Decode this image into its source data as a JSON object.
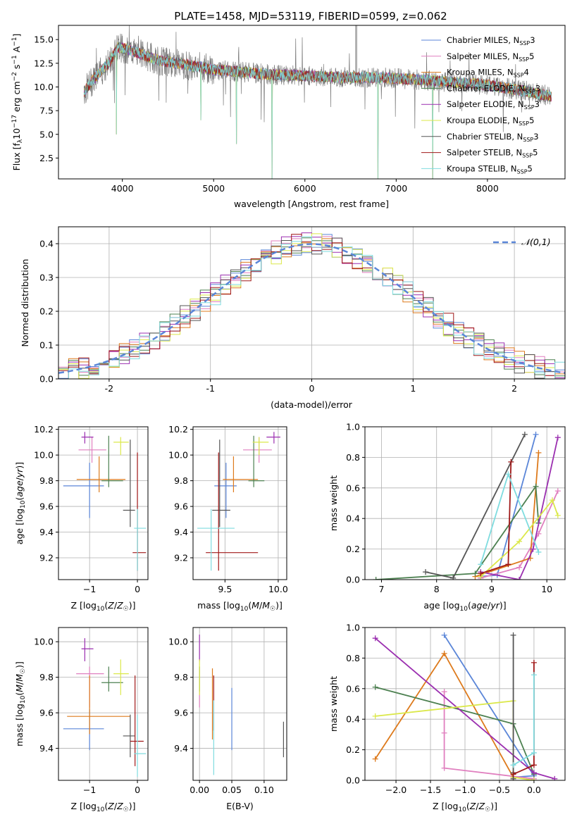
{
  "figure": {
    "title": "PLATE=1458, MJD=53119, FIBERID=0599, z=0.062"
  },
  "colors": {
    "Chabrier MILES": "#5b86d8",
    "Salpeter MILES": "#e07fbf",
    "Kroupa MILES": "#dd7a1c",
    "Chabrier ELODIE": "#4c8050",
    "Salpeter ELODIE": "#9b2fb0",
    "Kroupa ELODIE": "#dbe84a",
    "Chabrier STELIB": "#555555",
    "Salpeter STELIB": "#a01818",
    "Kroupa STELIB": "#7fdcdf",
    "data": "#7a7a7a"
  },
  "chart_data": [
    {
      "id": "spectrum",
      "type": "line",
      "title": "PLATE=1458, MJD=53119, FIBERID=0599, z=0.062",
      "xlabel": "wavelength [Angstrom, rest frame]",
      "ylabel": "Flux [f_λ10^-17 erg cm^-2 s^-1 A^-1]",
      "xlim": [
        3300,
        8850
      ],
      "ylim": [
        0.3,
        16.5
      ],
      "xticks": [
        4000,
        5000,
        6000,
        7000,
        8000
      ],
      "yticks": [
        2.5,
        5.0,
        7.5,
        10.0,
        12.5,
        15.0
      ],
      "ytick_labels": [
        "2.5",
        "5.0",
        "7.5",
        "10.0",
        "12.5",
        "15.0"
      ],
      "grid": false,
      "legend_position": "top-right",
      "legend": [
        {
          "name": "Chabrier MILES",
          "nssp": "3"
        },
        {
          "name": "Salpeter MILES",
          "nssp": "5"
        },
        {
          "name": "Kroupa MILES",
          "nssp": "4"
        },
        {
          "name": "Chabrier ELODIE",
          "nssp": "3"
        },
        {
          "name": "Salpeter ELODIE",
          "nssp": "3"
        },
        {
          "name": "Kroupa ELODIE",
          "nssp": "5"
        },
        {
          "name": "Chabrier STELIB",
          "nssp": "3"
        },
        {
          "name": "Salpeter STELIB",
          "nssp": "5"
        },
        {
          "name": "Kroupa STELIB",
          "nssp": "5"
        }
      ],
      "continuum": {
        "x": [
          3580,
          3700,
          3850,
          3950,
          4050,
          4200,
          4400,
          4600,
          4800,
          5000,
          5300,
          5600,
          6000,
          6400,
          6800,
          7200,
          7600,
          8000,
          8400,
          8700
        ],
        "y": [
          9.5,
          11.0,
          12.5,
          14.2,
          14.0,
          13.5,
          12.8,
          12.5,
          12.2,
          11.8,
          11.6,
          11.3,
          11.2,
          11.0,
          11.0,
          10.8,
          10.5,
          10.2,
          9.6,
          9.0
        ]
      },
      "absorption_features": [
        {
          "x": 3934,
          "y": 5.0
        },
        {
          "x": 4861,
          "y": 6.5
        },
        {
          "x": 5250,
          "y": 4.0
        },
        {
          "x": 5640,
          "y": 0.3
        },
        {
          "x": 6800,
          "y": 0.3
        },
        {
          "x": 7400,
          "y": 0.3
        }
      ]
    },
    {
      "id": "residuals",
      "type": "histogram",
      "xlabel": "(data-model)/error",
      "ylabel": "Normed distribution",
      "xlim": [
        -2.5,
        2.5
      ],
      "ylim": [
        0,
        0.45
      ],
      "xticks": [
        -2,
        -1,
        0,
        1,
        2
      ],
      "yticks": [
        0.0,
        0.1,
        0.2,
        0.3,
        0.4
      ],
      "ytick_labels": [
        "0.0",
        "0.1",
        "0.2",
        "0.3",
        "0.4"
      ],
      "grid": true,
      "legend": [
        {
          "name": "𝒩(0,1)"
        }
      ],
      "bin_width": 0.1,
      "bins_start": -2.5,
      "bins_count": 50
    },
    {
      "id": "z-age",
      "type": "scatter",
      "xlabel": "Z [log10(Z/Z☉)]",
      "ylabel": "age  [log10(age/yr)]",
      "xlim": [
        -1.65,
        0.22
      ],
      "ylim": [
        9.03,
        10.22
      ],
      "xticks": [
        -1,
        0
      ],
      "xtick_labels": [
        "−1",
        "0"
      ],
      "yticks": [
        9.2,
        9.4,
        9.6,
        9.8,
        10.0,
        10.2
      ],
      "ytick_labels": [
        "9.2",
        "9.4",
        "9.6",
        "9.8",
        "10.0",
        "10.2"
      ],
      "grid": true,
      "errorbars": [
        {
          "model": "Chabrier MILES",
          "x": -1.0,
          "y": 9.76,
          "xerr": [
            0.55,
            0.3
          ],
          "yerr": [
            0.25,
            0.18
          ]
        },
        {
          "model": "Salpeter MILES",
          "x": -0.95,
          "y": 10.04,
          "xerr": [
            0.28,
            0.3
          ],
          "yerr": [
            0.1,
            0.1
          ]
        },
        {
          "model": "Kroupa MILES",
          "x": -0.8,
          "y": 9.81,
          "xerr": [
            0.47,
            0.55
          ],
          "yerr": [
            0.1,
            0.18
          ]
        },
        {
          "model": "Chabrier ELODIE",
          "x": -0.6,
          "y": 9.8,
          "xerr": [
            0.15,
            0.3
          ],
          "yerr": [
            0.05,
            0.35
          ]
        },
        {
          "model": "Salpeter ELODIE",
          "x": -1.1,
          "y": 10.14,
          "xerr": [
            0.07,
            0.18
          ],
          "yerr": [
            0.05,
            0.04
          ]
        },
        {
          "model": "Kroupa ELODIE",
          "x": -0.35,
          "y": 10.1,
          "xerr": [
            0.15,
            0.17
          ],
          "yerr": [
            0.1,
            0.04
          ]
        },
        {
          "model": "Chabrier STELIB",
          "x": -0.15,
          "y": 9.57,
          "xerr": [
            0.15,
            0.1
          ],
          "yerr": [
            0.13,
            0.55
          ]
        },
        {
          "model": "Salpeter STELIB",
          "x": 0.0,
          "y": 9.24,
          "xerr": [
            0.1,
            0.18
          ],
          "yerr": [
            0.14,
            0.78
          ]
        },
        {
          "model": "Kroupa STELIB",
          "x": 0.0,
          "y": 9.43,
          "xerr": [
            0.07,
            0.18
          ],
          "yerr": [
            0.33,
            0.15
          ]
        }
      ]
    },
    {
      "id": "mass-age",
      "type": "scatter",
      "xlabel": "mass [log10(M/M☉)]",
      "ylabel": "",
      "xlim": [
        9.2,
        10.08
      ],
      "ylim": [
        9.03,
        10.22
      ],
      "xticks": [
        9.5,
        10.0
      ],
      "xtick_labels": [
        "9.5",
        "10.0"
      ],
      "yticks": [
        9.2,
        9.4,
        9.6,
        9.8,
        10.0,
        10.2
      ],
      "ytick_labels": [
        "9.2",
        "9.4",
        "9.6",
        "9.8",
        "10.0",
        "10.2"
      ],
      "grid": true,
      "errorbars": [
        {
          "model": "Chabrier MILES",
          "x": 9.51,
          "y": 9.76,
          "xerr": [
            0.11,
            0.1
          ],
          "yerr": [
            0.25,
            0.18
          ]
        },
        {
          "model": "Salpeter MILES",
          "x": 9.82,
          "y": 10.04,
          "xerr": [
            0.15,
            0.12
          ],
          "yerr": [
            0.1,
            0.1
          ]
        },
        {
          "model": "Kroupa MILES",
          "x": 9.58,
          "y": 9.81,
          "xerr": [
            0.1,
            0.23
          ],
          "yerr": [
            0.1,
            0.18
          ]
        },
        {
          "model": "Chabrier ELODIE",
          "x": 9.77,
          "y": 9.8,
          "xerr": [
            0.05,
            0.1
          ],
          "yerr": [
            0.05,
            0.35
          ]
        },
        {
          "model": "Salpeter ELODIE",
          "x": 9.96,
          "y": 10.14,
          "xerr": [
            0.07,
            0.06
          ],
          "yerr": [
            0.05,
            0.04
          ]
        },
        {
          "model": "Kroupa ELODIE",
          "x": 9.82,
          "y": 10.1,
          "xerr": [
            0.06,
            0.09
          ],
          "yerr": [
            0.1,
            0.04
          ]
        },
        {
          "model": "Chabrier STELIB",
          "x": 9.45,
          "y": 9.57,
          "xerr": [
            0.07,
            0.1
          ],
          "yerr": [
            0.13,
            0.55
          ]
        },
        {
          "model": "Salpeter STELIB",
          "x": 9.44,
          "y": 9.24,
          "xerr": [
            0.12,
            0.37
          ],
          "yerr": [
            0.14,
            0.78
          ]
        },
        {
          "model": "Kroupa STELIB",
          "x": 9.37,
          "y": 9.43,
          "xerr": [
            0.13,
            0.22
          ],
          "yerr": [
            0.33,
            0.15
          ]
        }
      ]
    },
    {
      "id": "age-weight",
      "type": "line",
      "xlabel": "age  [log10(age/yr)]",
      "ylabel": "mass weight",
      "xlim": [
        6.7,
        10.33
      ],
      "ylim": [
        0,
        1.0
      ],
      "xticks": [
        7,
        8,
        9,
        10
      ],
      "yticks": [
        0.0,
        0.2,
        0.4,
        0.6,
        0.8,
        1.0
      ],
      "ytick_labels": [
        "0.0",
        "0.2",
        "0.4",
        "0.6",
        "0.8",
        "1.0"
      ],
      "grid": true,
      "series": [
        {
          "model": "Chabrier MILES",
          "x": [
            8.8,
            9.1,
            9.8
          ],
          "y": [
            0.02,
            0.03,
            0.95
          ]
        },
        {
          "model": "Salpeter MILES",
          "x": [
            8.8,
            9.5,
            9.85,
            10.2
          ],
          "y": [
            0.01,
            0.08,
            0.3,
            0.58
          ]
        },
        {
          "model": "Kroupa MILES",
          "x": [
            8.7,
            9.7,
            9.85
          ],
          "y": [
            0.02,
            0.14,
            0.83
          ]
        },
        {
          "model": "Chabrier ELODIE",
          "x": [
            6.9,
            8.7,
            9.8,
            9.85
          ],
          "y": [
            0.0,
            0.04,
            0.61,
            0.37
          ]
        },
        {
          "model": "Salpeter ELODIE",
          "x": [
            8.8,
            9.5,
            9.75,
            10.2
          ],
          "y": [
            0.05,
            0.0,
            0.2,
            0.93
          ]
        },
        {
          "model": "Kroupa ELODIE",
          "x": [
            8.8,
            9.5,
            10.1,
            10.2
          ],
          "y": [
            0.02,
            0.25,
            0.52,
            0.42
          ]
        },
        {
          "model": "Chabrier STELIB",
          "x": [
            7.8,
            8.3,
            9.6
          ],
          "y": [
            0.05,
            0.01,
            0.95
          ]
        },
        {
          "model": "Salpeter STELIB",
          "x": [
            8.8,
            9.3,
            9.35
          ],
          "y": [
            0.04,
            0.1,
            0.77
          ]
        },
        {
          "model": "Kroupa STELIB",
          "x": [
            8.8,
            9.3,
            9.85
          ],
          "y": [
            0.1,
            0.69,
            0.18
          ]
        }
      ]
    },
    {
      "id": "z-mass",
      "type": "scatter",
      "xlabel": "Z [log10(Z/Z☉)]",
      "ylabel": "mass [log10(M/M☉)]",
      "xlim": [
        -1.65,
        0.22
      ],
      "ylim": [
        9.22,
        10.08
      ],
      "xticks": [
        -1,
        0
      ],
      "xtick_labels": [
        "−1",
        "0"
      ],
      "yticks": [
        9.4,
        9.6,
        9.8,
        10.0
      ],
      "ytick_labels": [
        "9.4",
        "9.6",
        "9.8",
        "10.0"
      ],
      "grid": true,
      "errorbars": [
        {
          "model": "Chabrier MILES",
          "x": -1.0,
          "y": 9.51,
          "xerr": [
            0.55,
            0.3
          ],
          "yerr": [
            0.12,
            0.11
          ]
        },
        {
          "model": "Salpeter MILES",
          "x": -1.0,
          "y": 9.82,
          "xerr": [
            0.28,
            0.3
          ],
          "yerr": [
            0.19,
            0.04
          ]
        },
        {
          "model": "Kroupa MILES",
          "x": -1.0,
          "y": 9.58,
          "xerr": [
            0.47,
            0.85
          ],
          "yerr": [
            0.1,
            0.23
          ]
        },
        {
          "model": "Chabrier ELODIE",
          "x": -0.6,
          "y": 9.77,
          "xerr": [
            0.15,
            0.3
          ],
          "yerr": [
            0.05,
            0.09
          ]
        },
        {
          "model": "Salpeter ELODIE",
          "x": -1.1,
          "y": 9.96,
          "xerr": [
            0.07,
            0.18
          ],
          "yerr": [
            0.07,
            0.06
          ]
        },
        {
          "model": "Kroupa ELODIE",
          "x": -0.35,
          "y": 9.82,
          "xerr": [
            0.15,
            0.17
          ],
          "yerr": [
            0.12,
            0.08
          ]
        },
        {
          "model": "Chabrier STELIB",
          "x": -0.15,
          "y": 9.47,
          "xerr": [
            0.15,
            0.1
          ],
          "yerr": [
            0.12,
            0.12
          ]
        },
        {
          "model": "Salpeter STELIB",
          "x": -0.05,
          "y": 9.44,
          "xerr": [
            0.1,
            0.18
          ],
          "yerr": [
            0.14,
            0.37
          ]
        },
        {
          "model": "Kroupa STELIB",
          "x": 0.0,
          "y": 9.37,
          "xerr": [
            0.07,
            0.18
          ],
          "yerr": [
            0.13,
            0.22
          ]
        }
      ]
    },
    {
      "id": "ebv-mass",
      "type": "scatter",
      "xlabel": "E(B-V)",
      "ylabel": "",
      "xlim": [
        -0.01,
        0.135
      ],
      "ylim": [
        9.22,
        10.08
      ],
      "xticks": [
        0.0,
        0.05,
        0.1
      ],
      "xtick_labels": [
        "0.00",
        "0.05",
        "0.10"
      ],
      "yticks": [
        9.4,
        9.6,
        9.8,
        10.0
      ],
      "ytick_labels": [
        "9.4",
        "9.6",
        "9.8",
        "10.0"
      ],
      "grid": true,
      "errorbars": [
        {
          "model": "Chabrier MILES",
          "x": 0.05,
          "y": 9.51,
          "xerr": [
            0,
            0
          ],
          "yerr": [
            0.12,
            0.23
          ]
        },
        {
          "model": "Salpeter MILES",
          "x": 0.0,
          "y": 9.82,
          "xerr": [
            0,
            0
          ],
          "yerr": [
            0.19,
            0.04
          ]
        },
        {
          "model": "Kroupa MILES",
          "x": 0.02,
          "y": 9.58,
          "xerr": [
            0,
            0
          ],
          "yerr": [
            0.13,
            0.27
          ]
        },
        {
          "model": "Chabrier ELODIE",
          "x": 0.0,
          "y": 9.77,
          "xerr": [
            0,
            0
          ],
          "yerr": [
            0.05,
            0.09
          ]
        },
        {
          "model": "Salpeter ELODIE",
          "x": 0.0,
          "y": 9.96,
          "xerr": [
            0,
            0
          ],
          "yerr": [
            0.07,
            0.08
          ]
        },
        {
          "model": "Kroupa ELODIE",
          "x": 0.0,
          "y": 9.82,
          "xerr": [
            0,
            0
          ],
          "yerr": [
            0.12,
            0.08
          ]
        },
        {
          "model": "Chabrier STELIB",
          "x": 0.13,
          "y": 9.47,
          "xerr": [
            0,
            0
          ],
          "yerr": [
            0.12,
            0.08
          ]
        },
        {
          "model": "Salpeter STELIB",
          "x": 0.022,
          "y": 9.7,
          "xerr": [
            0,
            0
          ],
          "yerr": [
            0.2,
            0.11
          ]
        },
        {
          "model": "Kroupa STELIB",
          "x": 0.022,
          "y": 9.45,
          "xerr": [
            0,
            0
          ],
          "yerr": [
            0.2,
            0.22
          ]
        }
      ]
    },
    {
      "id": "z-weight",
      "type": "line",
      "xlabel": "Z [log10(Z/Z☉)]",
      "ylabel": "mass weight",
      "xlim": [
        -2.45,
        0.45
      ],
      "ylim": [
        0,
        1.0
      ],
      "xticks": [
        -2.0,
        -1.5,
        -1.0,
        -0.5,
        0.0
      ],
      "xtick_labels": [
        "−2.0",
        "−1.5",
        "−1.0",
        "−0.5",
        "0.0"
      ],
      "yticks": [
        0.0,
        0.2,
        0.4,
        0.6,
        0.8,
        1.0
      ],
      "ytick_labels": [
        "0.0",
        "0.2",
        "0.4",
        "0.6",
        "0.8",
        "1.0"
      ],
      "grid": true,
      "series": [
        {
          "model": "Chabrier MILES",
          "x": [
            -1.3,
            0.0,
            -0.3
          ],
          "y": [
            0.95,
            0.03,
            0.02
          ]
        },
        {
          "model": "Salpeter MILES",
          "x": [
            -1.3,
            -1.3,
            -1.3,
            0.0
          ],
          "y": [
            0.58,
            0.31,
            0.08,
            0.01
          ]
        },
        {
          "model": "Kroupa MILES",
          "x": [
            -2.3,
            -1.3,
            -0.3
          ],
          "y": [
            0.14,
            0.83,
            0.02
          ]
        },
        {
          "model": "Chabrier ELODIE",
          "x": [
            -2.3,
            -0.3,
            0.0
          ],
          "y": [
            0.61,
            0.37,
            0.04
          ]
        },
        {
          "model": "Salpeter ELODIE",
          "x": [
            -2.3,
            0.0,
            0.3
          ],
          "y": [
            0.93,
            0.05,
            0.01
          ]
        },
        {
          "model": "Kroupa ELODIE",
          "x": [
            -2.3,
            -0.3,
            -0.3,
            0.0
          ],
          "y": [
            0.42,
            0.52,
            0.02,
            0.0
          ]
        },
        {
          "model": "Chabrier STELIB",
          "x": [
            -0.3,
            -0.3,
            -0.3
          ],
          "y": [
            0.95,
            0.05,
            0.01
          ]
        },
        {
          "model": "Salpeter STELIB",
          "x": [
            -0.3,
            0.0,
            0.0
          ],
          "y": [
            0.04,
            0.1,
            0.77
          ]
        },
        {
          "model": "Kroupa STELIB",
          "x": [
            0.0,
            0.0,
            -0.3
          ],
          "y": [
            0.69,
            0.18,
            0.1
          ]
        }
      ]
    }
  ]
}
